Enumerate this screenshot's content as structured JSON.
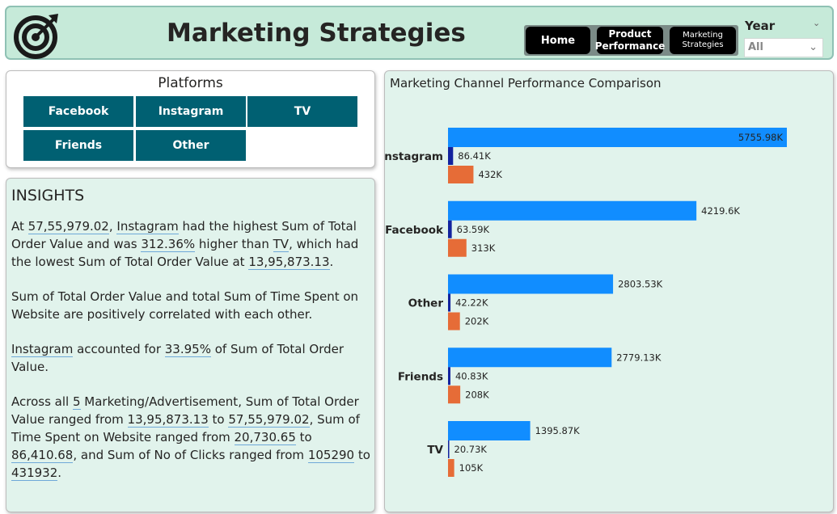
{
  "header": {
    "title": "Marketing Strategies",
    "nav": [
      {
        "label": "Home"
      },
      {
        "label": "Product Performance"
      },
      {
        "label": "Marketing Strategies"
      }
    ],
    "year_filter": {
      "label": "Year",
      "value": "All"
    }
  },
  "platforms": {
    "title": "Platforms",
    "buttons": [
      "Facebook",
      "Instagram",
      "TV",
      "Friends",
      "Other"
    ]
  },
  "insights": {
    "heading": "INSIGHTS",
    "p1": {
      "t1": "At ",
      "v1": "57,55,979.02",
      "t2": ", ",
      "v2": "Instagram",
      "t3": " had the highest Sum of Total Order Value and was ",
      "v3": "312.36%",
      "t4": " higher than ",
      "v4": "TV",
      "t5": ", which had the lowest Sum of Total Order Value at ",
      "v5": "13,95,873.13",
      "t6": "."
    },
    "p2": "Sum of Total Order Value and total Sum of Time Spent on Website are positively correlated with each other.",
    "p3": {
      "v1": "Instagram",
      "t1": " accounted for ",
      "v2": "33.95%",
      "t2": " of Sum of Total Order Value."
    },
    "p4": {
      "t1": "Across all ",
      "v1": "5",
      "t2": " Marketing/Advertisement, Sum of Total Order Value ranged from ",
      "v2": "13,95,873.13",
      "t3": " to ",
      "v3": "57,55,979.02",
      "t4": ", Sum of Time Spent on Website ranged from ",
      "v4": "20,730.65",
      "t5": " to ",
      "v5": "86,410.68",
      "t6": ", and Sum of No of Clicks ranged from ",
      "v6": "105290",
      "t7": " to ",
      "v7": "431932",
      "t8": "."
    }
  },
  "colors": {
    "series1": "#118dff",
    "series2": "#12239e",
    "series3": "#e66c37",
    "nav_bg": "#000000",
    "platform_btn": "#006072"
  },
  "chart_data": {
    "type": "bar",
    "orientation": "horizontal",
    "title": "Marketing Channel Performance Comparison",
    "categories": [
      "Instagram",
      "Facebook",
      "Other",
      "Friends",
      "TV"
    ],
    "series": [
      {
        "values": [
          5755.98,
          4219.6,
          2803.53,
          2779.13,
          1395.87
        ],
        "labels": [
          "5755.98K",
          "4219.6K",
          "2803.53K",
          "2779.13K",
          "1395.87K"
        ]
      },
      {
        "values": [
          86.41,
          63.59,
          42.22,
          40.83,
          20.73
        ],
        "labels": [
          "86.41K",
          "63.59K",
          "42.22K",
          "40.83K",
          "20.73K"
        ]
      },
      {
        "values": [
          432,
          313,
          202,
          208,
          105
        ],
        "labels": [
          "432K",
          "313K",
          "202K",
          "208K",
          "105K"
        ]
      }
    ],
    "unit": "K",
    "grid": false,
    "legend": "none"
  }
}
